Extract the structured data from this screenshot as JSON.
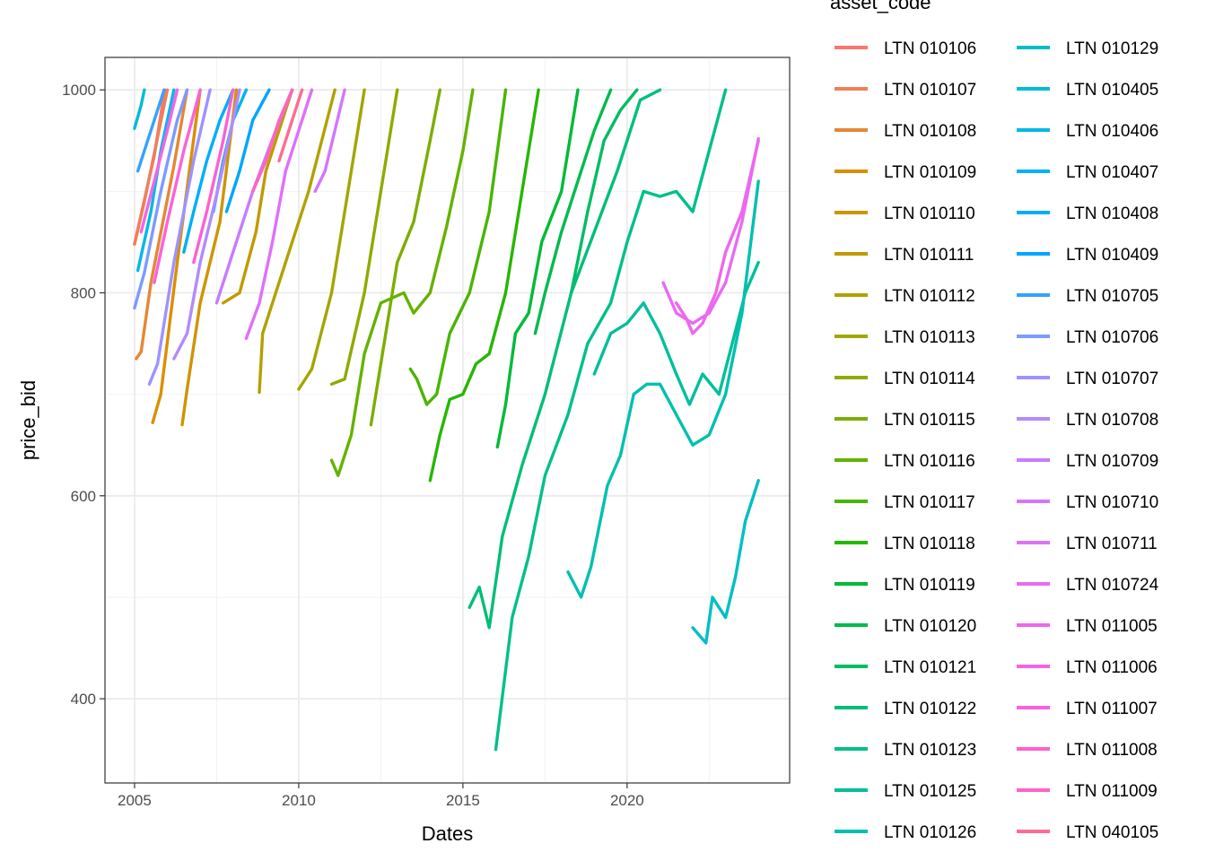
{
  "chart_data": {
    "type": "line",
    "xlabel": "Dates",
    "ylabel": "price_bid",
    "legend_title": "asset_code",
    "legend_placement": "right",
    "grid": true,
    "xlim": [
      2004.1,
      2024.95
    ],
    "ylim": [
      317,
      1032
    ],
    "x_ticks": [
      2005,
      2010,
      2015,
      2020
    ],
    "y_ticks": [
      400,
      600,
      800,
      1000
    ],
    "series": [
      {
        "name": "LTN 010106",
        "color": "#F8766D",
        "points": [
          [
            2005.0,
            848
          ],
          [
            2005.6,
            935
          ],
          [
            2005.92,
            1000
          ]
        ]
      },
      {
        "name": "LTN 010107",
        "color": "#F07F57",
        "points": [
          [
            2005.0,
            848
          ],
          [
            2005.3,
            890
          ],
          [
            2006.0,
            1000
          ]
        ]
      },
      {
        "name": "LTN 010108",
        "color": "#E58735",
        "points": [
          [
            2005.05,
            735
          ],
          [
            2005.2,
            742
          ],
          [
            2005.5,
            810
          ],
          [
            2006.2,
            925
          ],
          [
            2006.6,
            1000
          ]
        ]
      },
      {
        "name": "LTN 010109",
        "color": "#DA8F00",
        "points": [
          [
            2005.55,
            672
          ],
          [
            2005.8,
            700
          ],
          [
            2006.3,
            830
          ],
          [
            2007.0,
            1000
          ]
        ]
      },
      {
        "name": "LTN 010110",
        "color": "#CE9500",
        "points": [
          [
            2006.45,
            670
          ],
          [
            2006.6,
            705
          ],
          [
            2007.0,
            790
          ],
          [
            2007.6,
            870
          ],
          [
            2008.1,
            1000
          ]
        ]
      },
      {
        "name": "LTN 010111",
        "color": "#C09B00",
        "points": [
          [
            2007.7,
            790
          ],
          [
            2008.2,
            800
          ],
          [
            2008.7,
            860
          ],
          [
            2009.0,
            920
          ],
          [
            2009.8,
            1000
          ]
        ]
      },
      {
        "name": "LTN 010112",
        "color": "#B2A100",
        "points": [
          [
            2008.8,
            702
          ],
          [
            2008.9,
            760
          ],
          [
            2009.3,
            800
          ],
          [
            2010.3,
            900
          ],
          [
            2011.1,
            1000
          ]
        ]
      },
      {
        "name": "LTN 010113",
        "color": "#A2A600",
        "points": [
          [
            2010.0,
            705
          ],
          [
            2010.4,
            725
          ],
          [
            2011.0,
            800
          ],
          [
            2011.5,
            900
          ],
          [
            2012.0,
            1000
          ]
        ]
      },
      {
        "name": "LTN 010114",
        "color": "#90AA00",
        "points": [
          [
            2011.0,
            710
          ],
          [
            2011.4,
            715
          ],
          [
            2012.0,
            800
          ],
          [
            2012.5,
            900
          ],
          [
            2013.0,
            1000
          ]
        ]
      },
      {
        "name": "LTN 010115",
        "color": "#7CAE00",
        "points": [
          [
            2012.2,
            670
          ],
          [
            2012.5,
            730
          ],
          [
            2013.0,
            830
          ],
          [
            2013.5,
            870
          ],
          [
            2014.0,
            950
          ],
          [
            2014.3,
            1000
          ]
        ]
      },
      {
        "name": "LTN 010116",
        "color": "#64B200",
        "points": [
          [
            2011.0,
            635
          ],
          [
            2011.2,
            620
          ],
          [
            2011.6,
            660
          ],
          [
            2012.0,
            740
          ],
          [
            2012.5,
            790
          ],
          [
            2013.2,
            800
          ],
          [
            2013.5,
            780
          ],
          [
            2014.0,
            800
          ],
          [
            2014.5,
            865
          ],
          [
            2015.0,
            940
          ],
          [
            2015.3,
            1000
          ]
        ]
      },
      {
        "name": "LTN 010117",
        "color": "#49B500",
        "points": [
          [
            2013.4,
            725
          ],
          [
            2013.6,
            715
          ],
          [
            2013.9,
            690
          ],
          [
            2014.2,
            700
          ],
          [
            2014.6,
            760
          ],
          [
            2015.2,
            800
          ],
          [
            2015.8,
            880
          ],
          [
            2016.3,
            1000
          ]
        ]
      },
      {
        "name": "LTN 010118",
        "color": "#26B700",
        "points": [
          [
            2014.0,
            615
          ],
          [
            2014.3,
            660
          ],
          [
            2014.6,
            695
          ],
          [
            2015.0,
            700
          ],
          [
            2015.4,
            730
          ],
          [
            2015.8,
            740
          ],
          [
            2016.3,
            800
          ],
          [
            2016.8,
            900
          ],
          [
            2017.3,
            1000
          ]
        ]
      },
      {
        "name": "LTN 010119",
        "color": "#00BA38",
        "points": [
          [
            2016.05,
            648
          ],
          [
            2016.3,
            690
          ],
          [
            2016.6,
            760
          ],
          [
            2017.0,
            780
          ],
          [
            2017.4,
            850
          ],
          [
            2018.0,
            900
          ],
          [
            2018.5,
            1000
          ]
        ]
      },
      {
        "name": "LTN 010120",
        "color": "#00BB4E",
        "points": [
          [
            2017.2,
            760
          ],
          [
            2017.5,
            800
          ],
          [
            2018.0,
            860
          ],
          [
            2018.4,
            900
          ],
          [
            2019.0,
            960
          ],
          [
            2019.5,
            1000
          ]
        ]
      },
      {
        "name": "LTN 010121",
        "color": "#00BC64",
        "points": [
          [
            2018.3,
            800
          ],
          [
            2018.8,
            880
          ],
          [
            2019.3,
            950
          ],
          [
            2019.8,
            980
          ],
          [
            2020.3,
            1000
          ]
        ]
      },
      {
        "name": "LTN 010122",
        "color": "#00BE78",
        "points": [
          [
            2015.2,
            490
          ],
          [
            2015.5,
            510
          ],
          [
            2015.8,
            470
          ],
          [
            2016.2,
            560
          ],
          [
            2016.8,
            630
          ],
          [
            2017.5,
            700
          ],
          [
            2018.3,
            800
          ],
          [
            2019.0,
            860
          ],
          [
            2019.7,
            920
          ],
          [
            2020.4,
            990
          ],
          [
            2021.0,
            1000
          ]
        ]
      },
      {
        "name": "LTN 010123",
        "color": "#00BF8B",
        "points": [
          [
            2016.0,
            350
          ],
          [
            2016.5,
            480
          ],
          [
            2017.0,
            540
          ],
          [
            2017.5,
            620
          ],
          [
            2018.2,
            680
          ],
          [
            2018.8,
            750
          ],
          [
            2019.5,
            790
          ],
          [
            2020.0,
            850
          ],
          [
            2020.5,
            900
          ],
          [
            2021.0,
            895
          ],
          [
            2021.5,
            900
          ],
          [
            2022.0,
            880
          ],
          [
            2022.5,
            940
          ],
          [
            2023.0,
            1000
          ]
        ]
      },
      {
        "name": "LTN 010125",
        "color": "#00BF9C",
        "points": [
          [
            2019.0,
            720
          ],
          [
            2019.5,
            760
          ],
          [
            2020.0,
            770
          ],
          [
            2020.5,
            790
          ],
          [
            2021.0,
            760
          ],
          [
            2021.5,
            720
          ],
          [
            2021.9,
            690
          ],
          [
            2022.3,
            720
          ],
          [
            2022.8,
            700
          ],
          [
            2023.2,
            750
          ],
          [
            2023.6,
            800
          ],
          [
            2024.0,
            830
          ]
        ]
      },
      {
        "name": "LTN 010126",
        "color": "#00C0AF",
        "points": [
          [
            2018.2,
            525
          ],
          [
            2018.6,
            500
          ],
          [
            2018.9,
            530
          ],
          [
            2019.4,
            610
          ],
          [
            2019.8,
            640
          ],
          [
            2020.2,
            700
          ],
          [
            2020.6,
            710
          ],
          [
            2021.0,
            710
          ],
          [
            2021.5,
            680
          ],
          [
            2022.0,
            650
          ],
          [
            2022.5,
            660
          ],
          [
            2023.0,
            700
          ],
          [
            2023.5,
            780
          ],
          [
            2024.0,
            910
          ]
        ]
      },
      {
        "name": "LTN 010129",
        "color": "#00BFC4",
        "points": [
          [
            2022.0,
            470
          ],
          [
            2022.4,
            455
          ],
          [
            2022.6,
            500
          ],
          [
            2023.0,
            480
          ],
          [
            2023.3,
            520
          ],
          [
            2023.6,
            575
          ],
          [
            2024.0,
            615
          ]
        ]
      },
      {
        "name": "LTN 010405",
        "color": "#00BCD6",
        "points": [
          [
            2005.0,
            962
          ],
          [
            2005.2,
            985
          ],
          [
            2005.3,
            1000
          ]
        ]
      },
      {
        "name": "LTN 010406",
        "color": "#00B8E7",
        "points": [
          [
            2005.1,
            822
          ],
          [
            2005.5,
            880
          ],
          [
            2005.8,
            940
          ],
          [
            2006.2,
            1000
          ]
        ]
      },
      {
        "name": "LTN 010407",
        "color": "#00B4F0",
        "points": [
          [
            2007.4,
            880
          ],
          [
            2007.7,
            930
          ],
          [
            2008.0,
            970
          ],
          [
            2008.4,
            1000
          ]
        ]
      },
      {
        "name": "LTN 010408",
        "color": "#00ADFA",
        "points": [
          [
            2006.5,
            840
          ],
          [
            2006.8,
            880
          ],
          [
            2007.2,
            930
          ],
          [
            2007.6,
            970
          ],
          [
            2008.0,
            1000
          ]
        ]
      },
      {
        "name": "LTN 010409",
        "color": "#00A5FF",
        "points": [
          [
            2007.8,
            880
          ],
          [
            2008.2,
            920
          ],
          [
            2008.6,
            970
          ],
          [
            2009.1,
            1000
          ]
        ]
      },
      {
        "name": "LTN 010705",
        "color": "#35A2FF",
        "points": [
          [
            2005.1,
            920
          ],
          [
            2005.5,
            960
          ],
          [
            2005.9,
            1000
          ]
        ]
      },
      {
        "name": "LTN 010706",
        "color": "#7C9BFF",
        "points": [
          [
            2005.0,
            785
          ],
          [
            2005.3,
            820
          ],
          [
            2005.8,
            900
          ],
          [
            2006.3,
            970
          ],
          [
            2006.6,
            1000
          ]
        ]
      },
      {
        "name": "LTN 010707",
        "color": "#9D93FF",
        "points": [
          [
            2005.45,
            710
          ],
          [
            2005.7,
            730
          ],
          [
            2006.2,
            830
          ],
          [
            2006.8,
            930
          ],
          [
            2007.3,
            1000
          ]
        ]
      },
      {
        "name": "LTN 010708",
        "color": "#B38AFF",
        "points": [
          [
            2006.2,
            735
          ],
          [
            2006.6,
            760
          ],
          [
            2007.0,
            830
          ],
          [
            2007.6,
            910
          ],
          [
            2008.2,
            1000
          ]
        ]
      },
      {
        "name": "LTN 010709",
        "color": "#C77CFF",
        "points": [
          [
            2007.5,
            790
          ],
          [
            2008.0,
            840
          ],
          [
            2008.6,
            900
          ],
          [
            2009.3,
            960
          ],
          [
            2009.8,
            1000
          ]
        ]
      },
      {
        "name": "LTN 010710",
        "color": "#D376FF",
        "points": [
          [
            2010.5,
            900
          ],
          [
            2010.8,
            920
          ],
          [
            2011.1,
            960
          ],
          [
            2011.4,
            1000
          ]
        ]
      },
      {
        "name": "LTN 010711",
        "color": "#DF70F8",
        "points": [
          [
            2008.4,
            755
          ],
          [
            2008.8,
            790
          ],
          [
            2009.2,
            850
          ],
          [
            2009.6,
            920
          ],
          [
            2010.0,
            960
          ],
          [
            2010.4,
            1000
          ]
        ]
      },
      {
        "name": "LTN 010724",
        "color": "#E76BF3",
        "points": [
          [
            2021.1,
            810
          ],
          [
            2021.5,
            780
          ],
          [
            2022.0,
            770
          ],
          [
            2022.5,
            780
          ],
          [
            2023.0,
            810
          ],
          [
            2023.5,
            870
          ],
          [
            2024.0,
            952
          ]
        ]
      },
      {
        "name": "LTN 011005",
        "color": "#EF67EB",
        "points": [
          [
            2021.5,
            790
          ],
          [
            2021.8,
            775
          ],
          [
            2022.0,
            760
          ],
          [
            2022.3,
            770
          ],
          [
            2022.7,
            800
          ],
          [
            2023.0,
            840
          ],
          [
            2023.5,
            880
          ],
          [
            2024.0,
            950
          ]
        ]
      },
      {
        "name": "LTN 011006",
        "color": "#F564E3",
        "points": [
          [
            2005.2,
            860
          ],
          [
            2005.6,
            910
          ],
          [
            2006.0,
            960
          ],
          [
            2006.3,
            1000
          ]
        ]
      },
      {
        "name": "LTN 011007",
        "color": "#FA62DB",
        "points": [
          [
            2005.6,
            810
          ],
          [
            2006.0,
            870
          ],
          [
            2006.5,
            940
          ],
          [
            2007.0,
            1000
          ]
        ]
      },
      {
        "name": "LTN 011008",
        "color": "#FD61D1",
        "points": [
          [
            2006.8,
            830
          ],
          [
            2007.2,
            880
          ],
          [
            2007.7,
            950
          ],
          [
            2008.0,
            1000
          ]
        ]
      },
      {
        "name": "LTN 011009",
        "color": "#FF63C4",
        "points": [
          [
            2008.6,
            900
          ],
          [
            2009.0,
            930
          ],
          [
            2009.4,
            970
          ],
          [
            2009.8,
            1000
          ]
        ]
      },
      {
        "name": "LTN 040105",
        "color": "#FF6C91",
        "points": [
          [
            2009.4,
            930
          ],
          [
            2009.7,
            960
          ],
          [
            2010.0,
            990
          ],
          [
            2010.1,
            1000
          ]
        ]
      }
    ]
  }
}
